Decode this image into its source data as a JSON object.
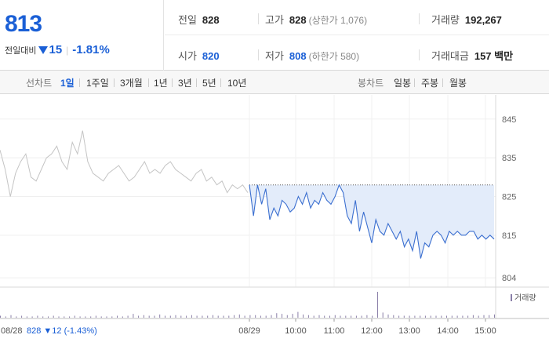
{
  "header": {
    "price": "813",
    "change_label": "전일대비",
    "change_value": "15",
    "change_pct": "-1.81%"
  },
  "stats": {
    "prev_close": {
      "label": "전일",
      "value": "828"
    },
    "high": {
      "label": "고가",
      "value": "828",
      "sub": "(상한가 1,076)"
    },
    "volume": {
      "label": "거래량",
      "value": "192,267"
    },
    "open": {
      "label": "시가",
      "value": "820"
    },
    "low": {
      "label": "저가",
      "value": "808",
      "sub": "(하한가 580)"
    },
    "amount": {
      "label": "거래대금",
      "value": "157 백만"
    }
  },
  "period_bar": {
    "line_label": "선차트",
    "ranges": [
      "1일",
      "1주일",
      "3개월",
      "1년",
      "3년",
      "5년",
      "10년"
    ],
    "selected": "1일",
    "candle_label": "봉차트",
    "candle_ranges": [
      "일봉",
      "주봉",
      "월봉"
    ]
  },
  "colors": {
    "blue": "#1a5fd6",
    "prev_line": "#c4c4c4",
    "today_line": "#3b6fd0",
    "fill": "#e3ecfa",
    "volume_bar": "#8a7fa8"
  },
  "chart_data": {
    "type": "line",
    "y_ticks": [
      "845",
      "835",
      "825",
      "815",
      "804"
    ],
    "y_tick_values": [
      845,
      835,
      825,
      815,
      804
    ],
    "ylim": [
      802,
      848
    ],
    "x_labels": [
      "08/29",
      "10:00",
      "11:00",
      "12:00",
      "13:00",
      "14:00",
      "15:00"
    ],
    "prev_session_label": "08/28",
    "prev_session_summary": "828 ▼12 (-1.43%)",
    "volume_legend": "거래량",
    "reference_price": 828,
    "series": [
      {
        "values": [
          837,
          832,
          825,
          831,
          834,
          836,
          830,
          829,
          832,
          835,
          836,
          838,
          834,
          832,
          839,
          836,
          842,
          834,
          831,
          830,
          829,
          831,
          832,
          833,
          831,
          829,
          830,
          832,
          834,
          831,
          832,
          831,
          833,
          834,
          832,
          831,
          830,
          829,
          831,
          832,
          829,
          830,
          828,
          829,
          826,
          828,
          827,
          828,
          826
        ]
      },
      {
        "values": [
          828,
          820,
          828,
          823,
          827,
          819,
          822,
          820,
          824,
          823,
          821,
          822,
          825,
          823,
          826,
          822,
          824,
          823,
          826,
          824,
          823,
          825,
          828,
          826,
          820,
          818,
          824,
          816,
          821,
          817,
          813,
          819,
          816,
          815,
          818,
          816,
          814,
          816,
          812,
          814,
          811,
          816,
          809,
          813,
          812,
          815,
          816,
          815,
          813,
          816,
          815,
          816,
          815,
          815,
          816,
          816,
          814,
          815,
          814,
          815,
          814
        ]
      }
    ],
    "volume": [
      3,
      2,
      4,
      2,
      3,
      2,
      2,
      3,
      2,
      2,
      3,
      2,
      2,
      2,
      3,
      2,
      2,
      2,
      3,
      2,
      2,
      2,
      3,
      2,
      3,
      6,
      3,
      4,
      3,
      3,
      5,
      3,
      3,
      4,
      3,
      3,
      4,
      3,
      3,
      3,
      4,
      3,
      3,
      3,
      4,
      5,
      3,
      4,
      4,
      3,
      3,
      4,
      7,
      6,
      4,
      6,
      9,
      5,
      4,
      3,
      4,
      3,
      3,
      4,
      3,
      3,
      3,
      3,
      3,
      4,
      3,
      40,
      8,
      5,
      4,
      3,
      3,
      3,
      3,
      3,
      3,
      3,
      3,
      3,
      3,
      3,
      3,
      3,
      3,
      4,
      3,
      4,
      4,
      5
    ]
  }
}
